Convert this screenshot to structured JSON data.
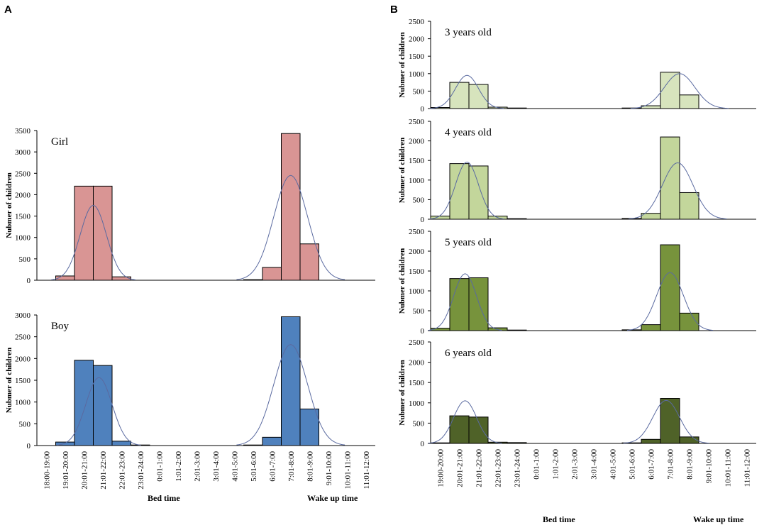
{
  "panels": [
    {
      "letter": "A"
    },
    {
      "letter": "B"
    }
  ],
  "time_bins": [
    "18:00-19:00",
    "19:01-20:00",
    "20:01-21:00",
    "21:01-22:00",
    "22:01-23:00",
    "23:01-24:00",
    "0:01-1:00",
    "1:01-2:00",
    "2:01-3:00",
    "3:01-4:00",
    "4:01-5:00",
    "5:01-6:00",
    "6:01-7:00",
    "7:01-8:00",
    "8:01-9:00",
    "9:01-10:00",
    "10:01-11:00",
    "11:01-12:00"
  ],
  "time_bins_b": [
    "19:00-20:00",
    "20:01-21:00",
    "21:01-22:00",
    "22:01-23:00",
    "23:01-24:00",
    "0:01-1:00",
    "1:01-2:00",
    "2:01-3:00",
    "3:01-4:00",
    "4:01-5:00",
    "5:01-6:00",
    "6:01-7:00",
    "7:01-8:00",
    "8:01-9:00",
    "9:01-10:00",
    "10:01-11:00",
    "11:01-12:00"
  ],
  "xlabels": {
    "bed": "Bed time",
    "wake": "Wake up time"
  },
  "ylabel": "Nubmer of children",
  "colors": {
    "girl": "#d99594",
    "boy": "#4f81bd",
    "age3": "#d7e4bd",
    "age4": "#c3d69b",
    "age5": "#77933c",
    "age6": "#4f6228",
    "curve": "#5a6aa0"
  },
  "chart_data": [
    {
      "type": "bar",
      "panel": "A",
      "title": "Girl",
      "categories_key": "time_bins",
      "values": [
        0,
        100,
        2200,
        2200,
        80,
        0,
        0,
        0,
        0,
        0,
        0,
        10,
        300,
        3430,
        850,
        0,
        0,
        0
      ],
      "ylim": [
        0,
        3500
      ],
      "yticks": [
        0,
        500,
        1000,
        1500,
        2000,
        2500,
        3000,
        3500
      ],
      "color_key": "girl",
      "curves": [
        {
          "peak": 1750,
          "mu": 3.0,
          "sigma": 0.7
        },
        {
          "peak": 2450,
          "mu": 13.5,
          "sigma": 0.9
        }
      ]
    },
    {
      "type": "bar",
      "panel": "A",
      "title": "Boy",
      "categories_key": "time_bins",
      "values": [
        0,
        80,
        1960,
        1840,
        100,
        10,
        0,
        0,
        0,
        0,
        0,
        10,
        190,
        2960,
        840,
        0,
        0,
        0
      ],
      "ylim": [
        0,
        3000
      ],
      "yticks": [
        0,
        500,
        1000,
        1500,
        2000,
        2500,
        3000
      ],
      "color_key": "boy",
      "curves": [
        {
          "peak": 1560,
          "mu": 3.3,
          "sigma": 0.7
        },
        {
          "peak": 2320,
          "mu": 13.5,
          "sigma": 0.9
        }
      ]
    },
    {
      "type": "bar",
      "panel": "B",
      "title": "3 years old",
      "categories_key": "time_bins_b",
      "values": [
        30,
        750,
        690,
        40,
        10,
        0,
        0,
        0,
        0,
        0,
        10,
        80,
        1040,
        390,
        0,
        0,
        0
      ],
      "ylim": [
        0,
        2500
      ],
      "yticks": [
        0,
        500,
        1000,
        1500,
        2000,
        2500
      ],
      "color_key": "age3",
      "curves": [
        {
          "peak": 950,
          "mu": 1.9,
          "sigma": 0.6
        },
        {
          "peak": 1000,
          "mu": 13.0,
          "sigma": 0.8
        }
      ]
    },
    {
      "type": "bar",
      "panel": "B",
      "title": "4 years old",
      "categories_key": "time_bins_b",
      "values": [
        80,
        1420,
        1360,
        80,
        10,
        0,
        0,
        0,
        0,
        0,
        20,
        150,
        2100,
        680,
        0,
        0,
        0
      ],
      "ylim": [
        0,
        2500
      ],
      "yticks": [
        0,
        500,
        1000,
        1500,
        2000,
        2500
      ],
      "color_key": "age4",
      "curves": [
        {
          "peak": 1460,
          "mu": 1.9,
          "sigma": 0.6
        },
        {
          "peak": 1440,
          "mu": 12.9,
          "sigma": 0.8
        }
      ]
    },
    {
      "type": "bar",
      "panel": "B",
      "title": "5 years old",
      "categories_key": "time_bins_b",
      "values": [
        60,
        1310,
        1330,
        70,
        10,
        0,
        0,
        0,
        0,
        0,
        20,
        150,
        2160,
        440,
        0,
        0,
        0
      ],
      "ylim": [
        0,
        2500
      ],
      "yticks": [
        0,
        500,
        1000,
        1500,
        2000,
        2500
      ],
      "color_key": "age5",
      "curves": [
        {
          "peak": 1430,
          "mu": 1.8,
          "sigma": 0.6
        },
        {
          "peak": 1460,
          "mu": 12.5,
          "sigma": 0.7
        }
      ]
    },
    {
      "type": "bar",
      "panel": "B",
      "title": "6 years old",
      "categories_key": "time_bins_b",
      "values": [
        10,
        680,
        650,
        30,
        20,
        0,
        0,
        0,
        0,
        0,
        10,
        100,
        1110,
        160,
        0,
        0,
        0
      ],
      "ylim": [
        0,
        2500
      ],
      "yticks": [
        0,
        500,
        1000,
        1500,
        2000,
        2500
      ],
      "color_key": "age6",
      "curves": [
        {
          "peak": 1050,
          "mu": 1.8,
          "sigma": 0.6
        },
        {
          "peak": 1060,
          "mu": 12.3,
          "sigma": 0.7
        }
      ]
    }
  ]
}
